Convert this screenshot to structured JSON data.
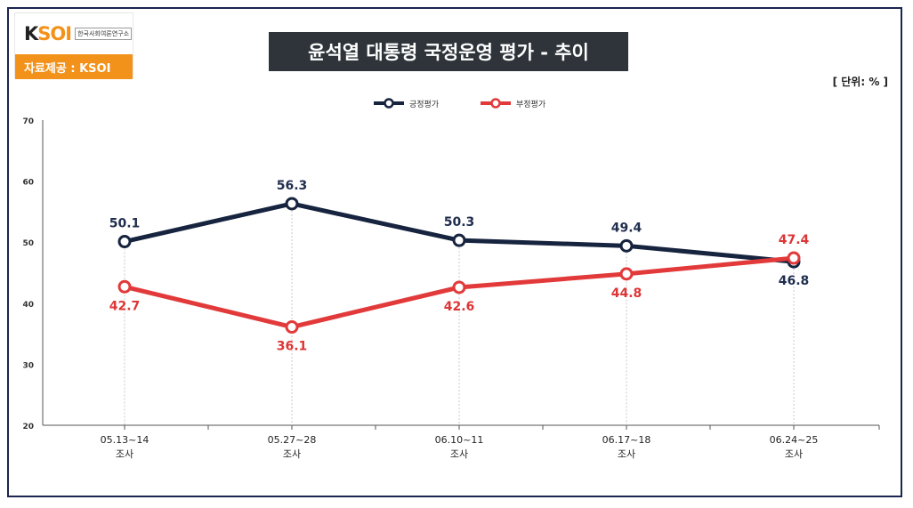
{
  "logo": {
    "mark_prefix": "K",
    "mark_accent": "SOI",
    "subtitle": "한국사회여론연구소",
    "source_label": "자료제공 : KSOI"
  },
  "title": "윤석열 대통령 국정운영 평가 - 추이",
  "unit": "[ 단위: % ]",
  "colors": {
    "positive": "#17243f",
    "negative": "#e23a3a",
    "positive_label": "#1f2d4e",
    "negative_label": "#dd3535",
    "logo_accent": "#f3921b",
    "title_bg": "#2e3439",
    "frame": "#1b2550"
  },
  "chart_data": {
    "type": "line",
    "title": "윤석열 대통령 국정운영 평가 - 추이",
    "xlabel": "",
    "ylabel": "",
    "ylim": [
      20,
      70
    ],
    "yticks": [
      "70",
      "60",
      "50",
      "40",
      "30",
      "20"
    ],
    "categories": [
      "05.13~14",
      "05.27~28",
      "06.10~11",
      "06.17~18",
      "06.24~25"
    ],
    "category_sub": "조사",
    "grid": false,
    "legend_position": "top-center",
    "series": [
      {
        "name": "긍정평가",
        "values": [
          50.1,
          56.3,
          50.3,
          49.4,
          46.8
        ],
        "labels": [
          "50.1",
          "56.3",
          "50.3",
          "49.4",
          "46.8"
        ]
      },
      {
        "name": "부정평가",
        "values": [
          42.7,
          36.1,
          42.6,
          44.8,
          47.4
        ],
        "labels": [
          "42.7",
          "36.1",
          "42.6",
          "44.8",
          "47.4"
        ]
      }
    ]
  }
}
